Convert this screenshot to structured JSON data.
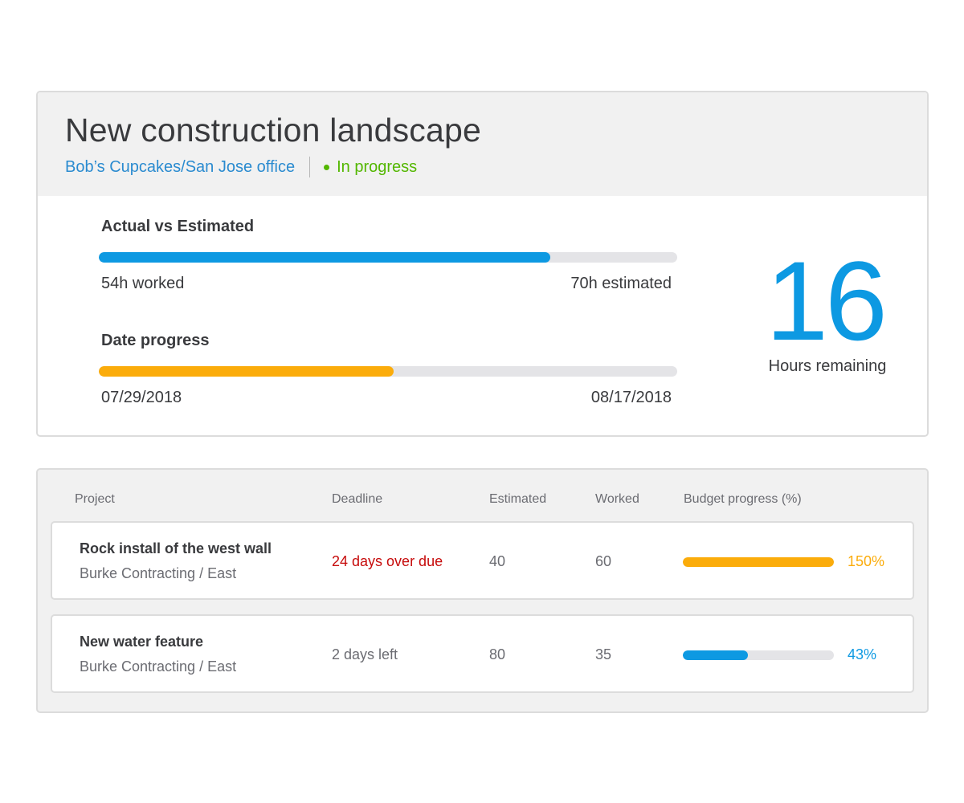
{
  "project": {
    "title": "New construction landscape",
    "customer": "Bob’s Cupcakes/San Jose office",
    "status": "In progress",
    "actual_vs_estimated": {
      "label": "Actual vs Estimated",
      "worked": "54h worked",
      "estimated": "70h estimated",
      "progress": 0.78,
      "color": "#0d99e2"
    },
    "date_progress": {
      "label": "Date progress",
      "start": "07/29/2018",
      "end": "08/17/2018",
      "progress": 0.51,
      "color": "#fbac0b"
    },
    "hours_remaining": {
      "value": "16",
      "label": "Hours remaining"
    }
  },
  "table": {
    "headers": {
      "project": "Project",
      "deadline": "Deadline",
      "estimated": "Estimated",
      "worked": "Worked",
      "budget": "Budget progress (%)"
    },
    "rows": [
      {
        "name": "Rock install of the west wall",
        "client": "Burke Contracting / East",
        "deadline": "24 days over due",
        "deadline_color": "#c60a0a",
        "estimated": "40",
        "worked": "60",
        "budget_pct": "150%",
        "budget_fraction": 1.0,
        "bar_color": "#fbac0b"
      },
      {
        "name": "New water feature",
        "client": "Burke Contracting / East",
        "deadline": "2 days left",
        "deadline_color": "#6b6c72",
        "estimated": "80",
        "worked": "35",
        "budget_pct": "43%",
        "budget_fraction": 0.43,
        "bar_color": "#0d99e2"
      }
    ]
  }
}
